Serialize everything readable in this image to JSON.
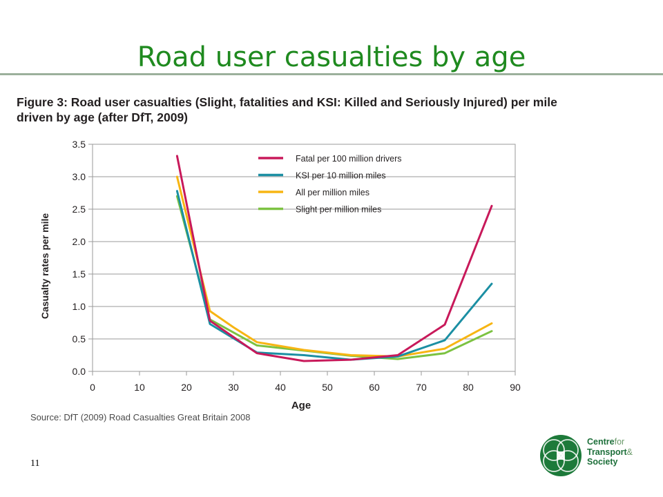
{
  "slide": {
    "title": "Road user casualties by age",
    "caption_line1": "Figure 3: Road user casualties (Slight, fatalities and KSI: Killed and Seriously Injured) per mile",
    "caption_line2": "driven by age (after DfT, 2009)",
    "source": "Source: DfT (2009) Road Casualties Great Britain 2008",
    "page_number": "11",
    "logo": {
      "line1_bold": "Centre",
      "line1_light": "for",
      "line2_bold": "Transport",
      "line2_light": "&",
      "line3": "Society"
    }
  },
  "colors": {
    "title": "#1f8a1f",
    "fatal": "#c8195a",
    "ksi": "#1b8fa3",
    "all": "#f7b513",
    "slight": "#7cc241"
  },
  "chart_data": {
    "type": "line",
    "xlabel": "Age",
    "ylabel": "Casualty rates per mile",
    "xlim": [
      0,
      90
    ],
    "ylim": [
      0,
      3.5
    ],
    "xticks": [
      0,
      10,
      20,
      30,
      40,
      50,
      60,
      70,
      80,
      90
    ],
    "yticks": [
      "0.0",
      "0.5",
      "1.0",
      "1.5",
      "2.0",
      "2.5",
      "3.0",
      "3.5"
    ],
    "grid": "horizontal",
    "legend_position": "top-center",
    "series": [
      {
        "name": "Fatal per 100 million drivers",
        "color": "#c8195a",
        "x": [
          18,
          25,
          35,
          45,
          55,
          65,
          75,
          85
        ],
        "y": [
          3.32,
          0.78,
          0.28,
          0.16,
          0.18,
          0.25,
          0.72,
          2.55
        ]
      },
      {
        "name": "KSI per 10 million miles",
        "color": "#1b8fa3",
        "x": [
          18,
          25,
          35,
          45,
          55,
          65,
          75,
          85
        ],
        "y": [
          2.78,
          0.73,
          0.29,
          0.25,
          0.18,
          0.23,
          0.48,
          1.35
        ]
      },
      {
        "name": "All per million miles",
        "color": "#f7b513",
        "x": [
          18,
          25,
          30,
          35,
          45,
          55,
          65,
          75,
          85
        ],
        "y": [
          3.0,
          0.93,
          0.68,
          0.45,
          0.33,
          0.25,
          0.23,
          0.35,
          0.74
        ]
      },
      {
        "name": "Slight per million miles",
        "color": "#7cc241",
        "x": [
          18,
          25,
          35,
          45,
          55,
          65,
          75,
          85
        ],
        "y": [
          2.7,
          0.8,
          0.4,
          0.32,
          0.24,
          0.19,
          0.28,
          0.62
        ]
      }
    ]
  }
}
